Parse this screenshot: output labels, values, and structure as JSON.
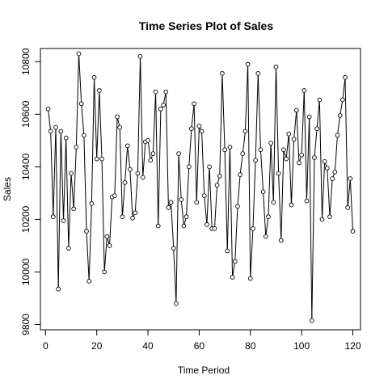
{
  "chart_data": {
    "type": "line",
    "title": "Time Series Plot of Sales",
    "xlabel": "Time Period",
    "ylabel": "Sales",
    "xlim": [
      -2,
      123
    ],
    "ylim": [
      9780,
      10850
    ],
    "x_ticks": [
      0,
      20,
      40,
      60,
      80,
      100,
      120
    ],
    "y_ticks": [
      9800,
      10000,
      10200,
      10400,
      10600,
      10800
    ],
    "grid": false,
    "legend": "none",
    "markers": "open-circle",
    "series": [
      {
        "color": "#000000",
        "x": [
          1,
          2,
          3,
          4,
          5,
          6,
          7,
          8,
          9,
          10,
          11,
          12,
          13,
          14,
          15,
          16,
          17,
          18,
          19,
          20,
          21,
          22,
          23,
          24,
          25,
          26,
          27,
          28,
          29,
          30,
          31,
          32,
          33,
          34,
          35,
          36,
          37,
          38,
          39,
          40,
          41,
          42,
          43,
          44,
          45,
          46,
          47,
          48,
          49,
          50,
          51,
          52,
          53,
          54,
          55,
          56,
          57,
          58,
          59,
          60,
          61,
          62,
          63,
          64,
          65,
          66,
          67,
          68,
          69,
          70,
          71,
          72,
          73,
          74,
          75,
          76,
          77,
          78,
          79,
          80,
          81,
          82,
          83,
          84,
          85,
          86,
          87,
          88,
          89,
          90,
          91,
          92,
          93,
          94,
          95,
          96,
          97,
          98,
          99,
          100,
          101,
          102,
          103,
          104,
          105,
          106,
          107,
          108,
          109,
          110,
          111,
          112,
          113,
          114,
          115,
          116,
          117,
          118,
          119,
          120
        ],
        "values": [
          10620,
          10535,
          10210,
          10550,
          9935,
          10535,
          10195,
          10510,
          10090,
          10375,
          10240,
          10475,
          10830,
          10640,
          10520,
          10155,
          9965,
          10260,
          10740,
          10430,
          10690,
          10430,
          10000,
          10135,
          10100,
          10285,
          10290,
          10590,
          10550,
          10210,
          10340,
          10480,
          10390,
          10205,
          10225,
          10375,
          10820,
          10360,
          10495,
          10500,
          10425,
          10450,
          10685,
          10175,
          10620,
          10635,
          10685,
          10245,
          10265,
          10090,
          9880,
          10450,
          10275,
          10175,
          10210,
          10400,
          10545,
          10640,
          10265,
          10555,
          10535,
          10290,
          10180,
          10400,
          10165,
          10165,
          10330,
          10365,
          10755,
          10465,
          10080,
          10475,
          9980,
          10040,
          10250,
          10370,
          10450,
          10535,
          10790,
          9975,
          10165,
          10425,
          10755,
          10465,
          10305,
          10135,
          10210,
          10490,
          10265,
          10780,
          10375,
          10120,
          10465,
          10430,
          10525,
          10255,
          10505,
          10615,
          10415,
          10445,
          10690,
          10270,
          10590,
          9815,
          10435,
          10545,
          10655,
          10200,
          10420,
          10395,
          10210,
          10355,
          10380,
          10520,
          10595,
          10655,
          10740,
          10245,
          10355,
          10155
        ]
      }
    ]
  }
}
